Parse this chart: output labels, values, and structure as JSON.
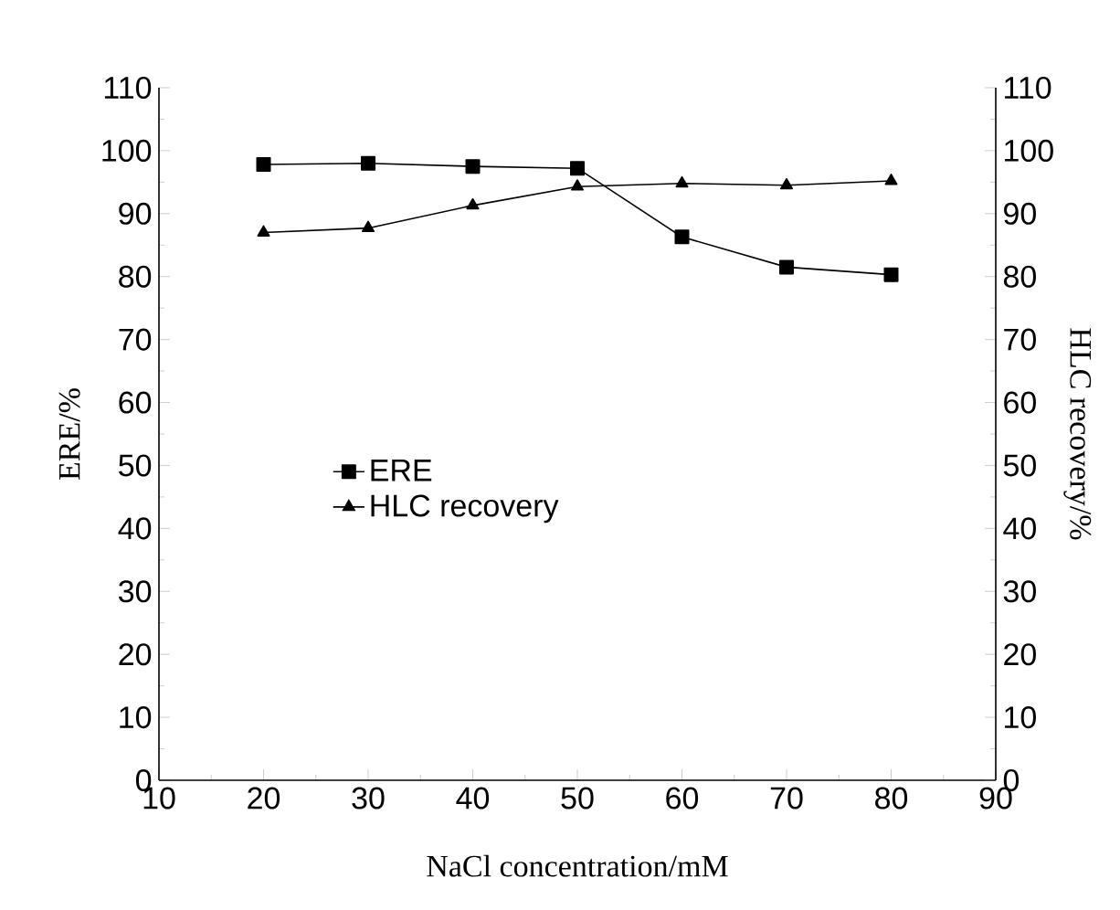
{
  "chart_data": {
    "type": "line",
    "xlabel": "NaCl concentration/mM",
    "ylabel": "ERE/%",
    "y2label": "HLC recovery/%",
    "x": [
      20,
      30,
      40,
      50,
      60,
      70,
      80
    ],
    "series": [
      {
        "name": "ERE",
        "color": "#000000",
        "marker": "square",
        "values": [
          97.8,
          98.0,
          97.5,
          97.2,
          86.3,
          81.5,
          80.3
        ]
      },
      {
        "name": "HLC recovery",
        "color": "#000000",
        "marker": "triangle",
        "axis": "y2",
        "values": [
          87.0,
          87.7,
          91.3,
          94.3,
          94.8,
          94.5,
          95.2
        ]
      }
    ],
    "xlim": [
      10,
      90
    ],
    "xticks": [
      10,
      20,
      30,
      40,
      50,
      60,
      70,
      80,
      90
    ],
    "ylim": [
      0,
      110
    ],
    "yticks": [
      0,
      10,
      20,
      30,
      40,
      50,
      60,
      70,
      80,
      90,
      100,
      110
    ],
    "y2lim": [
      0,
      110
    ],
    "y2ticks": [
      0,
      10,
      20,
      30,
      40,
      50,
      60,
      70,
      80,
      90,
      100,
      110
    ],
    "grid": false,
    "legend": "left",
    "line_style": "solid"
  }
}
